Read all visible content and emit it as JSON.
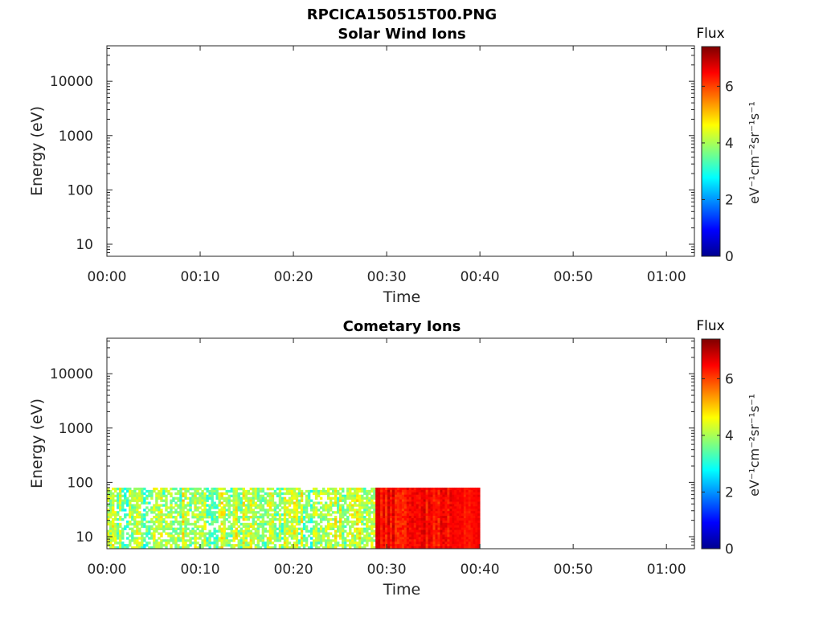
{
  "figure": {
    "title": "RPCICA150515T00.PNG"
  },
  "colormap": {
    "name": "jet",
    "stops": [
      "#00008f",
      "#0000ff",
      "#007fff",
      "#00ffff",
      "#7fff7f",
      "#ffff00",
      "#ff7f00",
      "#ff0000",
      "#7f0000"
    ],
    "range": [
      0,
      7.4
    ]
  },
  "chart_data": [
    {
      "type": "heatmap",
      "title": "Solar Wind Ions",
      "xlabel": "Time",
      "ylabel": "Energy (eV)",
      "yscale": "log",
      "ylim": [
        6,
        45000
      ],
      "xlim_minutes": [
        0,
        63
      ],
      "xticks": [
        "00:00",
        "00:10",
        "00:20",
        "00:30",
        "00:40",
        "00:50",
        "01:00"
      ],
      "xtick_minutes": [
        0,
        10,
        20,
        30,
        40,
        50,
        60
      ],
      "yticks": [
        "10",
        "100",
        "1000",
        "10000"
      ],
      "ytick_values": [
        10,
        100,
        1000,
        10000
      ],
      "colorbar": {
        "title": "Flux",
        "unit": "eV⁻¹cm⁻²sr⁻¹s⁻¹",
        "ticks": [
          "0",
          "2",
          "4",
          "6"
        ],
        "tick_values": [
          0,
          2,
          4,
          6
        ]
      },
      "segments": []
    },
    {
      "type": "heatmap",
      "title": "Cometary Ions",
      "xlabel": "Time",
      "ylabel": "Energy (eV)",
      "yscale": "log",
      "ylim": [
        6,
        45000
      ],
      "xlim_minutes": [
        0,
        63
      ],
      "xticks": [
        "00:00",
        "00:10",
        "00:20",
        "00:30",
        "00:40",
        "00:50",
        "01:00"
      ],
      "xtick_minutes": [
        0,
        10,
        20,
        30,
        40,
        50,
        60
      ],
      "yticks": [
        "10",
        "100",
        "1000",
        "10000"
      ],
      "ytick_values": [
        10,
        100,
        1000,
        10000
      ],
      "colorbar": {
        "title": "Flux",
        "unit": "eV⁻¹cm⁻²sr⁻¹s⁻¹",
        "ticks": [
          "0",
          "2",
          "4",
          "6"
        ],
        "tick_values": [
          0,
          2,
          4,
          6
        ]
      },
      "segments": [
        {
          "t_start_min": 0,
          "t_end_min": 28.8,
          "energy_min": 6,
          "energy_max": 80,
          "flux_min": 2.6,
          "flux_max": 5.2
        },
        {
          "t_start_min": 28.8,
          "t_end_min": 37.0,
          "energy_min": 6,
          "energy_max": 80,
          "flux_min": 5.9,
          "flux_max": 7.0
        },
        {
          "t_start_min": 37.0,
          "t_end_min": 40.0,
          "energy_min": 6,
          "energy_max": 80,
          "flux_min": 6.1,
          "flux_max": 6.7
        }
      ]
    }
  ]
}
